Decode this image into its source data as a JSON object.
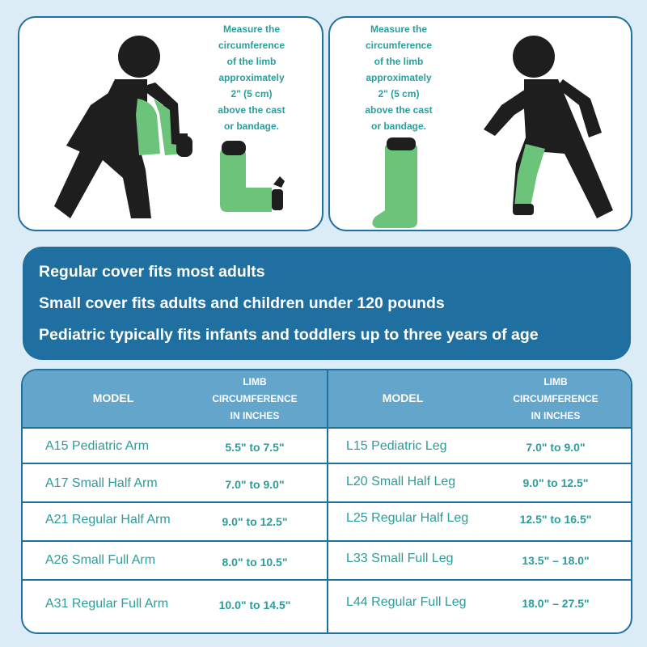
{
  "instructions": {
    "text": "Measure the circumference of the limb approximately 2\" (5 cm) above the cast or bandage.",
    "lines": [
      "Measure the",
      "circumference",
      "of the limb",
      "approximately",
      "2\" (5 cm)",
      "above the cast",
      "or bandage."
    ]
  },
  "colors": {
    "brand_blue": "#1f6fa0",
    "header_blue": "#64a5cc",
    "teal_text": "#2a9d9c",
    "cast_green": "#6cc47a",
    "figure_dark": "#1e1e1e"
  },
  "info": {
    "line1": "Regular cover fits most adults",
    "line2": "Small cover fits adults and children under 120 pounds",
    "line3": "Pediatric typically fits infants and toddlers up to three years of age"
  },
  "table": {
    "headers": {
      "model": "MODEL",
      "circ_line1": "LIMB",
      "circ_line2": "CIRCUMFERENCE",
      "circ_line3": "IN INCHES"
    },
    "arm": [
      {
        "model": "A15 Pediatric Arm",
        "circumference": "5.5\" to 7.5\""
      },
      {
        "model": "A17 Small Half Arm",
        "circumference": "7.0\" to 9.0\""
      },
      {
        "model": "A21 Regular Half Arm",
        "circumference": "9.0\" to 12.5\""
      },
      {
        "model": "A26 Small Full Arm",
        "circumference": "8.0\" to 10.5\""
      },
      {
        "model": "A31 Regular Full Arm",
        "circumference": "10.0\" to 14.5\""
      }
    ],
    "leg": [
      {
        "model": "L15 Pediatric Leg",
        "circumference": "7.0\" to 9.0\""
      },
      {
        "model": "L20 Small Half Leg",
        "circumference": "9.0\" to 12.5\""
      },
      {
        "model": "L25 Regular Half Leg",
        "circumference": "12.5\" to 16.5\""
      },
      {
        "model": "L33 Small Full Leg",
        "circumference": "13.5\" – 18.0\""
      },
      {
        "model": "L44 Regular Full Leg",
        "circumference": "18.0\" – 27.5\""
      }
    ]
  }
}
